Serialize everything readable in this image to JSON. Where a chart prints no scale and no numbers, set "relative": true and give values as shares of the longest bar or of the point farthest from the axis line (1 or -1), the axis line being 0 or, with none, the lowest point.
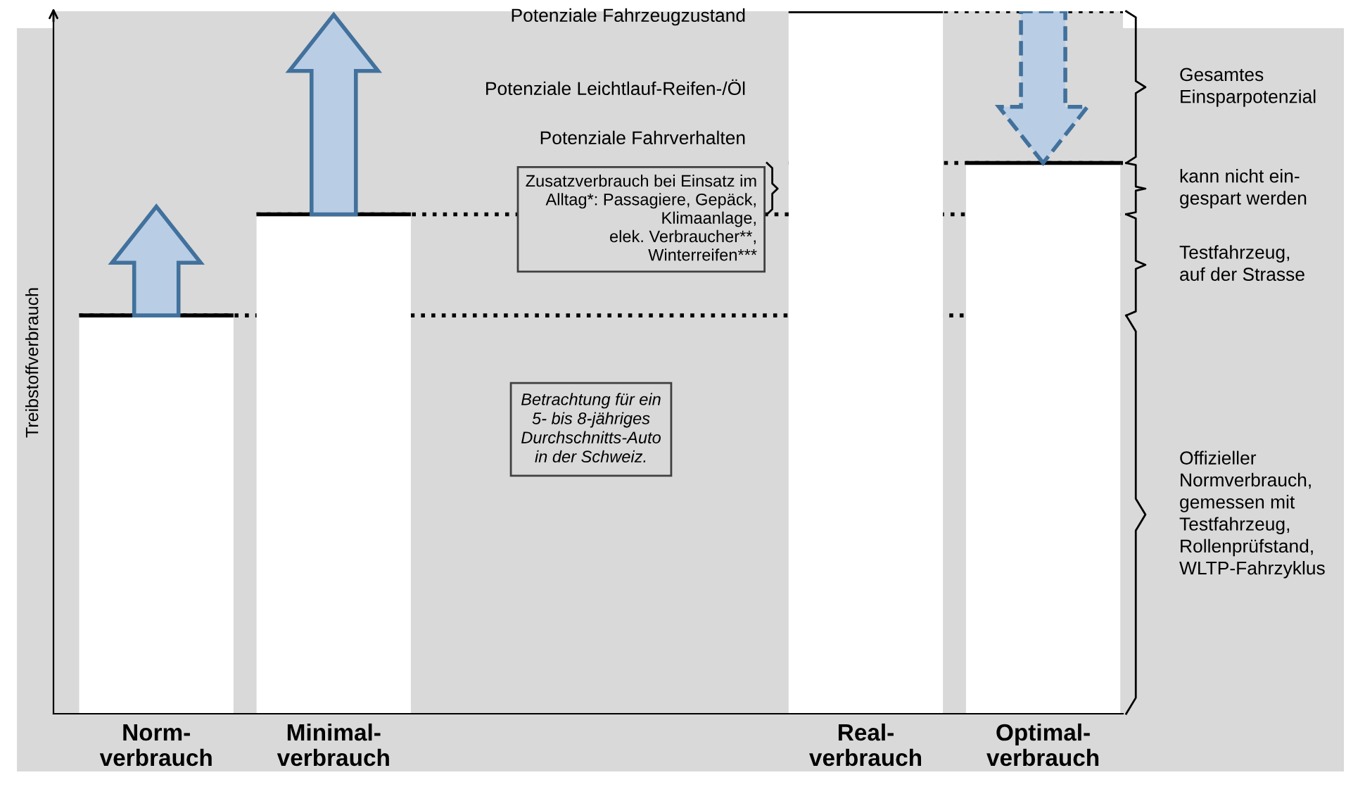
{
  "chart_data": {
    "type": "bar",
    "relative": true,
    "ylabel": "Treibstoffverbrauch",
    "categories": [
      "Norm-\nverbrauch",
      "Minimal-\nverbrauch",
      null,
      null,
      "Real-\nverbrauch",
      "Optimal-\nverbrauch"
    ],
    "values": [
      0.567,
      0.711,
      null,
      null,
      1,
      0.784
    ],
    "color": "#ffffff",
    "ref_lines": [
      {
        "axis": "y",
        "value": 0.567,
        "line_style": "dotted",
        "color": "#000000"
      },
      {
        "axis": "y",
        "value": 0.711,
        "line_style": "dotted",
        "color": "#000000"
      },
      {
        "axis": "y",
        "value": 0.784,
        "line_style": "dotted",
        "color": "#000000"
      },
      {
        "axis": "y",
        "value": 1,
        "line_style": "dotted",
        "color": "#000000"
      }
    ],
    "annotations": [
      "Potenziale Fahrzeugzustand",
      "Potenziale Leichtlauf-Reifen-/Öl",
      "Potenziale Fahrverhalten",
      "Zusatzverbrauch bei Einsatz im\nAlltag*: Passagiere, Gepäck,\nKlimaanlage,\nelek. Verbraucher**,\nWinterreifen***",
      "Betrachtung für ein\n5- bis 8-jähriges\nDurchschnitts-Auto\nin der Schweiz.",
      "Gesamtes\nEinsparpotenzial",
      "kann nicht ein-\ngespart werden",
      "Testfahrzeug,\nauf der Strasse",
      "Offizieller\nNormverbrauch,\ngemessen mit\nTestfahrzeug,\nRollenprüfstand,\nWLTP-Fahrzyklus"
    ],
    "grid": false,
    "legend": false,
    "tick_labels": "x"
  }
}
